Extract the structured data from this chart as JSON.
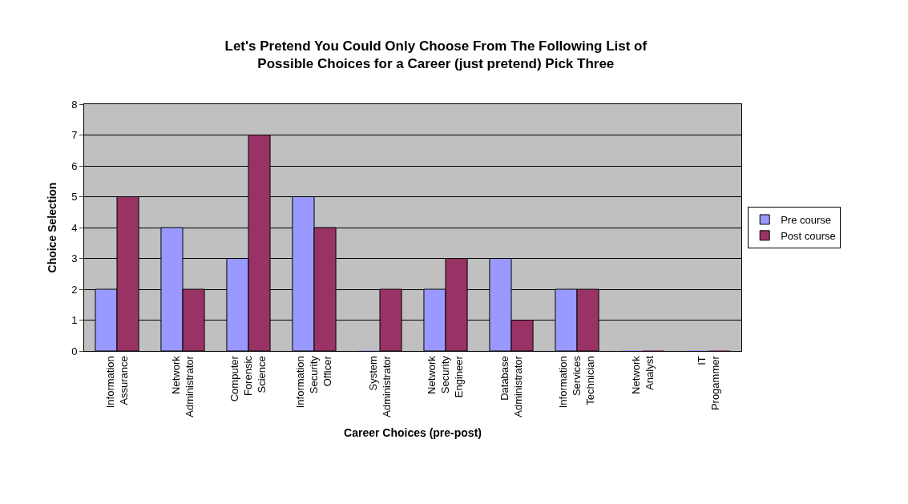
{
  "chart_data": {
    "type": "bar",
    "title": "Let's Pretend You Could Only Choose From The Following List of\nPossible Choices for a Career (just pretend) Pick Three",
    "xlabel": "Career Choices (pre-post)",
    "ylabel": "Choice Selection",
    "categories": [
      "Information\nAssurance",
      "Network\nAdministrator",
      "Computer\nForensic\nScience",
      "Information\nSecurity\nOfficer",
      "System\nAdministrator",
      "Network\nSecurity\nEngineer",
      "Database\nAdministrator",
      "Information\nServices\nTechnician",
      "Network\nAnalyst",
      "IT\nProgammer"
    ],
    "series": [
      {
        "name": "Pre course",
        "color": "#9999ff",
        "values": [
          2,
          4,
          3,
          5,
          0,
          2,
          3,
          2,
          0,
          0
        ]
      },
      {
        "name": "Post course",
        "color": "#993366",
        "values": [
          5,
          2,
          7,
          4,
          2,
          3,
          1,
          2,
          0,
          0
        ]
      }
    ],
    "ylim": [
      0,
      8
    ],
    "yticks": [
      0,
      1,
      2,
      3,
      4,
      5,
      6,
      7,
      8
    ],
    "grid": "y",
    "legend": "right"
  }
}
